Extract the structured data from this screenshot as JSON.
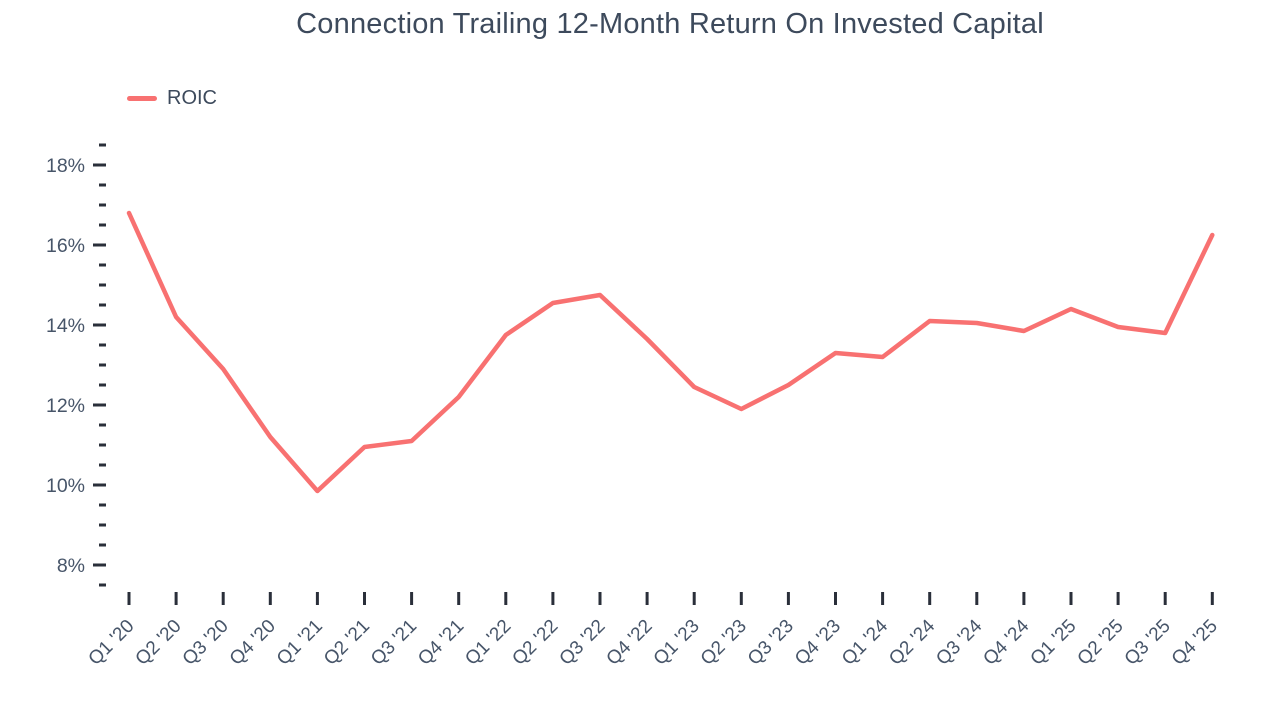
{
  "chart": {
    "title": "Connection Trailing 12-Month Return On Invested Capital",
    "legend_label": "ROIC",
    "colors": {
      "line": "#F87171",
      "title_text": "#3D4A5C",
      "axis_text": "#475569",
      "tick_mark": "#2A2F3A",
      "background": "#FFFFFF"
    }
  },
  "chart_data": {
    "type": "line",
    "title": "Connection Trailing 12-Month Return On Invested Capital",
    "xlabel": "",
    "ylabel": "",
    "unit": "percent",
    "grid": false,
    "legend_position": "top-left",
    "ylim": [
      7.5,
      18.5
    ],
    "y_minor_step": 0.5,
    "y_major_ticks": [
      {
        "value": 18,
        "label": "18%"
      },
      {
        "value": 16,
        "label": "16%"
      },
      {
        "value": 14,
        "label": "14%"
      },
      {
        "value": 12,
        "label": "12%"
      },
      {
        "value": 10,
        "label": "10%"
      },
      {
        "value": 8,
        "label": "8%"
      }
    ],
    "categories": [
      "Q1 '20",
      "Q2 '20",
      "Q3 '20",
      "Q4 '20",
      "Q1 '21",
      "Q2 '21",
      "Q3 '21",
      "Q4 '21",
      "Q1 '22",
      "Q2 '22",
      "Q3 '22",
      "Q4 '22",
      "Q1 '23",
      "Q2 '23",
      "Q3 '23",
      "Q4 '23",
      "Q1 '24",
      "Q2 '24",
      "Q3 '24",
      "Q4 '24",
      "Q1 '25",
      "Q2 '25",
      "Q3 '25",
      "Q4 '25"
    ],
    "series": [
      {
        "name": "ROIC",
        "color": "#F87171",
        "values": [
          16.8,
          14.2,
          12.9,
          11.2,
          9.85,
          10.95,
          11.1,
          12.2,
          13.75,
          14.55,
          14.75,
          13.65,
          12.45,
          11.9,
          12.5,
          13.3,
          13.2,
          14.1,
          14.05,
          13.85,
          14.4,
          13.95,
          13.8,
          16.25
        ]
      }
    ]
  }
}
